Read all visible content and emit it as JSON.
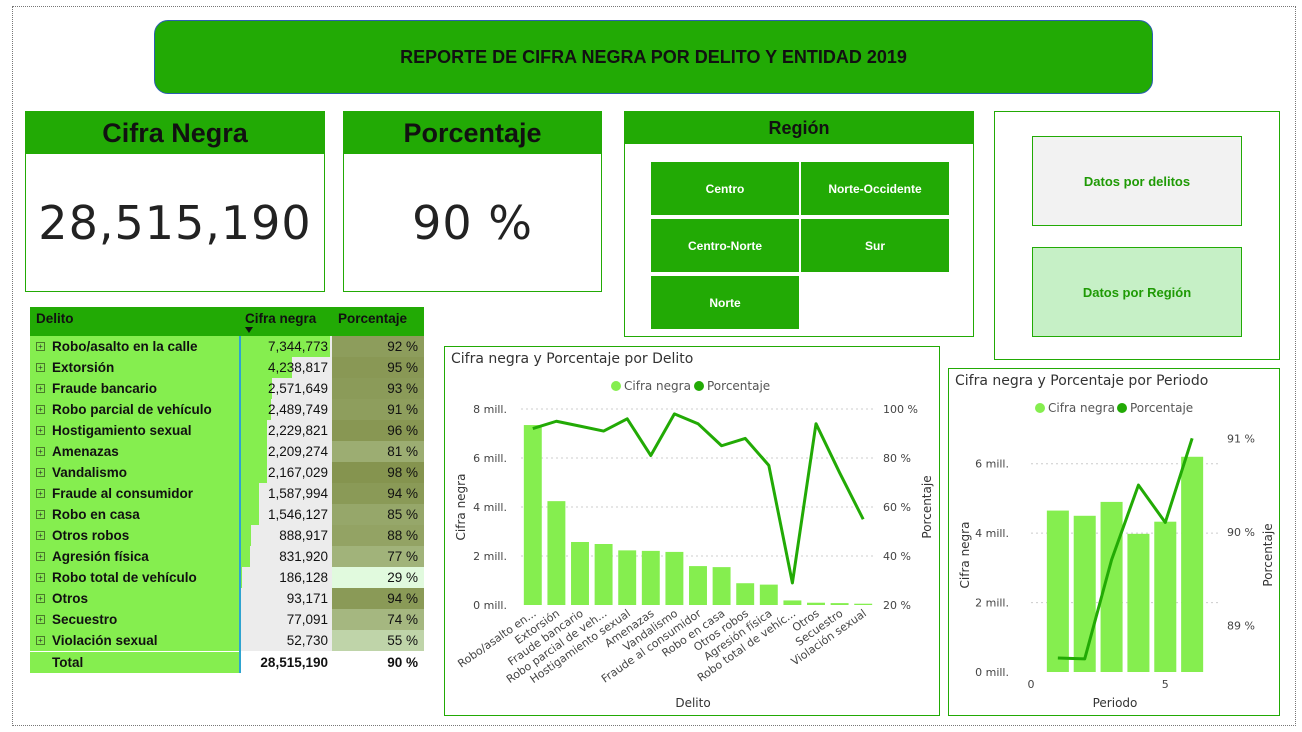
{
  "report": {
    "title": "REPORTE DE CIFRA NEGRA POR DELITO Y ENTIDAD 2019"
  },
  "kpis": {
    "cifra": {
      "label": "Cifra Negra",
      "value": "28,515,190"
    },
    "porcentaje": {
      "label": "Porcentaje",
      "value": "90 %"
    }
  },
  "region": {
    "label": "Región",
    "buttons": [
      "Centro",
      "Norte-Occidente",
      "Centro-Norte",
      "Sur",
      "Norte"
    ]
  },
  "nav": {
    "delitos": "Datos por delitos",
    "region": "Datos por Región"
  },
  "colors": {
    "banner": "#22aa05",
    "bar": "#85ee4f",
    "line": "#22aa05",
    "light": "#c6f0c6"
  },
  "table": {
    "headers": {
      "delito": "Delito",
      "cifra": "Cifra negra",
      "porcentaje": "Porcentaje"
    },
    "rows": [
      {
        "name": "Robo/asalto en la calle",
        "cifra": "7,344,773",
        "pct": "92 %",
        "v": 7344773,
        "p": 92
      },
      {
        "name": "Extorsión",
        "cifra": "4,238,817",
        "pct": "95 %",
        "v": 4238817,
        "p": 95
      },
      {
        "name": "Fraude bancario",
        "cifra": "2,571,649",
        "pct": "93 %",
        "v": 2571649,
        "p": 93
      },
      {
        "name": "Robo parcial de vehículo",
        "cifra": "2,489,749",
        "pct": "91 %",
        "v": 2489749,
        "p": 91
      },
      {
        "name": "Hostigamiento sexual",
        "cifra": "2,229,821",
        "pct": "96 %",
        "v": 2229821,
        "p": 96
      },
      {
        "name": "Amenazas",
        "cifra": "2,209,274",
        "pct": "81 %",
        "v": 2209274,
        "p": 81
      },
      {
        "name": "Vandalismo",
        "cifra": "2,167,029",
        "pct": "98 %",
        "v": 2167029,
        "p": 98
      },
      {
        "name": "Fraude al consumidor",
        "cifra": "1,587,994",
        "pct": "94 %",
        "v": 1587994,
        "p": 94
      },
      {
        "name": "Robo en casa",
        "cifra": "1,546,127",
        "pct": "85 %",
        "v": 1546127,
        "p": 85
      },
      {
        "name": "Otros robos",
        "cifra": "888,917",
        "pct": "88 %",
        "v": 888917,
        "p": 88
      },
      {
        "name": "Agresión física",
        "cifra": "831,920",
        "pct": "77 %",
        "v": 831920,
        "p": 77
      },
      {
        "name": "Robo total de vehículo",
        "cifra": "186,128",
        "pct": "29 %",
        "v": 186128,
        "p": 29
      },
      {
        "name": "Otros",
        "cifra": "93,171",
        "pct": "94 %",
        "v": 93171,
        "p": 94
      },
      {
        "name": "Secuestro",
        "cifra": "77,091",
        "pct": "74 %",
        "v": 77091,
        "p": 74
      },
      {
        "name": "Violación sexual",
        "cifra": "52,730",
        "pct": "55 %",
        "v": 52730,
        "p": 55
      }
    ],
    "total": {
      "label": "Total",
      "cifra": "28,515,190",
      "pct": "90 %"
    }
  },
  "chart_data": [
    {
      "type": "bar",
      "title": "Cifra negra y Porcentaje por Delito",
      "xlabel": "Delito",
      "ylabel": "Cifra negra",
      "y2label": "Porcentaje",
      "legend": [
        "Cifra negra",
        "Porcentaje"
      ],
      "categories": [
        "Robo/asalto en...",
        "Extorsión",
        "Fraude bancario",
        "Robo parcial de veh...",
        "Hostigamiento sexual",
        "Amenazas",
        "Vandalismo",
        "Fraude al consumidor",
        "Robo en casa",
        "Otros robos",
        "Agresión física",
        "Robo total de vehíc...",
        "Otros",
        "Secuestro",
        "Violación sexual"
      ],
      "series": [
        {
          "name": "Cifra negra",
          "values": [
            7344773,
            4238817,
            2571649,
            2489749,
            2229821,
            2209274,
            2167029,
            1587994,
            1546127,
            888917,
            831920,
            186128,
            93171,
            77091,
            52730
          ]
        },
        {
          "name": "Porcentaje",
          "values": [
            92,
            95,
            93,
            91,
            96,
            81,
            98,
            94,
            85,
            88,
            77,
            29,
            94,
            74,
            55
          ]
        }
      ],
      "ylim": [
        0,
        8000000
      ],
      "y2lim": [
        20,
        100
      ],
      "yticks": [
        "0 mill.",
        "2 mill.",
        "4 mill.",
        "6 mill.",
        "8 mill."
      ],
      "y2ticks": [
        "20 %",
        "40 %",
        "60 %",
        "80 %",
        "100 %"
      ]
    },
    {
      "type": "bar",
      "title": "Cifra negra y Porcentaje por Periodo",
      "xlabel": "Periodo",
      "ylabel": "Cifra negra",
      "y2label": "Porcentaje",
      "legend": [
        "Cifra negra",
        "Porcentaje"
      ],
      "x": [
        1,
        2,
        3,
        4,
        5,
        6
      ],
      "series": [
        {
          "name": "Cifra negra",
          "values": [
            4650000,
            4500000,
            4900000,
            3980000,
            4330000,
            6200000
          ]
        },
        {
          "name": "Porcentaje",
          "values": [
            88.65,
            88.64,
            89.7,
            90.5,
            90.1,
            91.0
          ]
        }
      ],
      "ylim": [
        0,
        7000000
      ],
      "y2lim": [
        88.5,
        91.1
      ],
      "yticks": [
        "0 mill.",
        "2 mill.",
        "4 mill.",
        "6 mill."
      ],
      "y2ticks": [
        "89 %",
        "90 %",
        "91 %"
      ],
      "xticks": [
        "0",
        "5"
      ]
    }
  ]
}
